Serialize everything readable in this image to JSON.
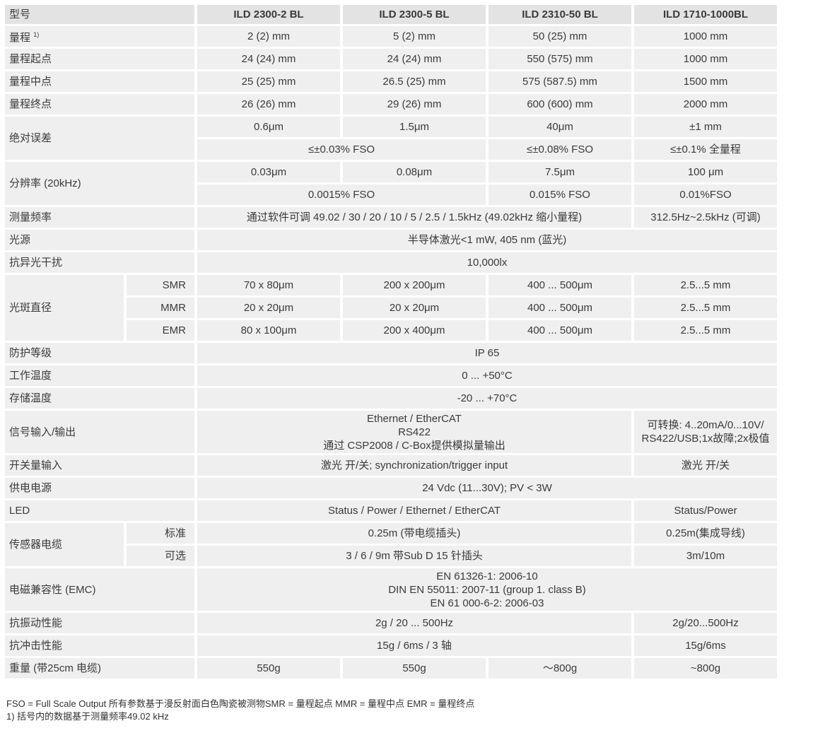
{
  "header": {
    "label": "型号",
    "models": [
      "ILD 2300-2 BL",
      "ILD 2300-5 BL",
      "ILD 2310-50 BL",
      "ILD 1710-1000BL"
    ]
  },
  "rows": [
    {
      "label": "量程",
      "sup": "1)",
      "cells": [
        {
          "t": "2 (2) mm"
        },
        {
          "t": "5 (2) mm"
        },
        {
          "t": "50 (25) mm"
        },
        {
          "t": "1000 mm"
        }
      ]
    },
    {
      "label": "量程起点",
      "cells": [
        {
          "t": "24 (24) mm"
        },
        {
          "t": "24 (24) mm"
        },
        {
          "t": "550 (575) mm"
        },
        {
          "t": "1000 mm"
        }
      ]
    },
    {
      "label": "量程中点",
      "cells": [
        {
          "t": "25 (25) mm"
        },
        {
          "t": "26.5 (25) mm"
        },
        {
          "t": "575 (587.5) mm"
        },
        {
          "t": "1500 mm"
        }
      ]
    },
    {
      "label": "量程终点",
      "cells": [
        {
          "t": "26 (26) mm"
        },
        {
          "t": "29 (26) mm"
        },
        {
          "t": "600 (600) mm"
        },
        {
          "t": "2000 mm"
        }
      ]
    },
    {
      "label": "绝对误差",
      "rowspan": 2,
      "cells": [
        {
          "t": "0.6μm"
        },
        {
          "t": "1.5μm"
        },
        {
          "t": "40μm"
        },
        {
          "t": "±1 mm"
        }
      ]
    },
    {
      "cells": [
        {
          "t": "≤±0.03% FSO",
          "span": 2
        },
        {
          "t": "≤±0.08% FSO"
        },
        {
          "t": "≤±0.1% 全量程"
        }
      ]
    },
    {
      "label": "分辨率 (20kHz)",
      "rowspan": 2,
      "cells": [
        {
          "t": "0.03μm"
        },
        {
          "t": "0.08μm"
        },
        {
          "t": "7.5μm"
        },
        {
          "t": "100 μm"
        }
      ]
    },
    {
      "cells": [
        {
          "t": "0.0015% FSO",
          "span": 2
        },
        {
          "t": "0.015% FSO"
        },
        {
          "t": "0.01%FSO"
        }
      ]
    },
    {
      "label": "测量频率",
      "cells": [
        {
          "t": "通过软件可调 49.02 / 30 / 20 / 10 / 5 / 2.5 / 1.5kHz (49.02kHz 缩小量程)",
          "span": 3
        },
        {
          "t": "312.5Hz~2.5kHz (可调)"
        }
      ]
    },
    {
      "label": "光源",
      "cells": [
        {
          "t": "半导体激光<1 mW, 405 nm (蓝光)",
          "span": 4
        }
      ]
    },
    {
      "label": "抗异光干扰",
      "cells": [
        {
          "t": "10,000lx",
          "span": 4
        }
      ]
    },
    {
      "label": "光斑直径",
      "rowspan": 3,
      "sub": "SMR",
      "cells": [
        {
          "t": "70 x 80μm"
        },
        {
          "t": "200 x 200μm"
        },
        {
          "t": "400 ... 500μm"
        },
        {
          "t": "2.5...5 mm"
        }
      ]
    },
    {
      "sub": "MMR",
      "cells": [
        {
          "t": "20 x 20μm"
        },
        {
          "t": "20 x 20μm"
        },
        {
          "t": "400 ... 500μm"
        },
        {
          "t": "2.5...5 mm"
        }
      ]
    },
    {
      "sub": "EMR",
      "cells": [
        {
          "t": "80 x 100μm"
        },
        {
          "t": "200 x 400μm"
        },
        {
          "t": "400 ... 500μm"
        },
        {
          "t": "2.5...5 mm"
        }
      ]
    },
    {
      "label": "防护等级",
      "cells": [
        {
          "t": "IP 65",
          "span": 4
        }
      ]
    },
    {
      "label": "工作温度",
      "cells": [
        {
          "t": "0 ... +50°C",
          "span": 4
        }
      ]
    },
    {
      "label": "存储温度",
      "cells": [
        {
          "t": "-20 ... +70°C",
          "span": 4
        }
      ]
    },
    {
      "label": "信号输入/输出",
      "tall": true,
      "cells": [
        {
          "t": "Ethernet / EtherCAT\nRS422\n通过 CSP2008 / C-Box提供模拟量输出",
          "span": 3
        },
        {
          "t": "可转换: 4..20mA/0...10V/\nRS422/USB;1x故障;2x极值"
        }
      ]
    },
    {
      "label": "开关量输入",
      "cells": [
        {
          "t": "激光 开/关; synchronization/trigger input",
          "span": 3
        },
        {
          "t": "激光 开/关"
        }
      ]
    },
    {
      "label": "供电电源",
      "cells": [
        {
          "t": "24 Vdc (11...30V); PV < 3W",
          "span": 4
        }
      ]
    },
    {
      "label": "LED",
      "cells": [
        {
          "t": "Status / Power / Ethernet / EtherCAT",
          "span": 3
        },
        {
          "t": "Status/Power"
        }
      ]
    },
    {
      "label": "传感器电缆",
      "rowspan": 2,
      "sub": "标准",
      "cells": [
        {
          "t": "0.25m (带电缆插头)",
          "span": 3
        },
        {
          "t": "0.25m(集成导线)"
        }
      ]
    },
    {
      "sub": "可选",
      "cells": [
        {
          "t": "3 / 6 / 9m 带Sub D 15 针插头",
          "span": 3
        },
        {
          "t": "3m/10m"
        }
      ]
    },
    {
      "label": "电磁兼容性 (EMC)",
      "tall": true,
      "cells": [
        {
          "t": "EN 61326-1: 2006-10\nDIN EN 55011: 2007-11 (group 1. class B)\nEN 61 000-6-2: 2006-03",
          "span": 4
        }
      ]
    },
    {
      "label": "抗振动性能",
      "cells": [
        {
          "t": "2g / 20 ... 500Hz",
          "span": 3
        },
        {
          "t": "2g/20...500Hz"
        }
      ]
    },
    {
      "label": "抗冲击性能",
      "cells": [
        {
          "t": "15g / 6ms / 3 轴",
          "span": 3
        },
        {
          "t": "15g/6ms"
        }
      ]
    },
    {
      "label": "重量 (带25cm 电缆)",
      "cells": [
        {
          "t": "550g"
        },
        {
          "t": "550g"
        },
        {
          "t": "～800g"
        },
        {
          "t": "~800g"
        }
      ]
    }
  ],
  "footnotes": [
    "FSO = Full Scale Output   所有参数基于漫反射面白色陶瓷被测物SMR = 量程起点 MMR = 量程中点 EMR = 量程终点",
    "1) 括号内的数据基于测量频率49.02 kHz"
  ]
}
